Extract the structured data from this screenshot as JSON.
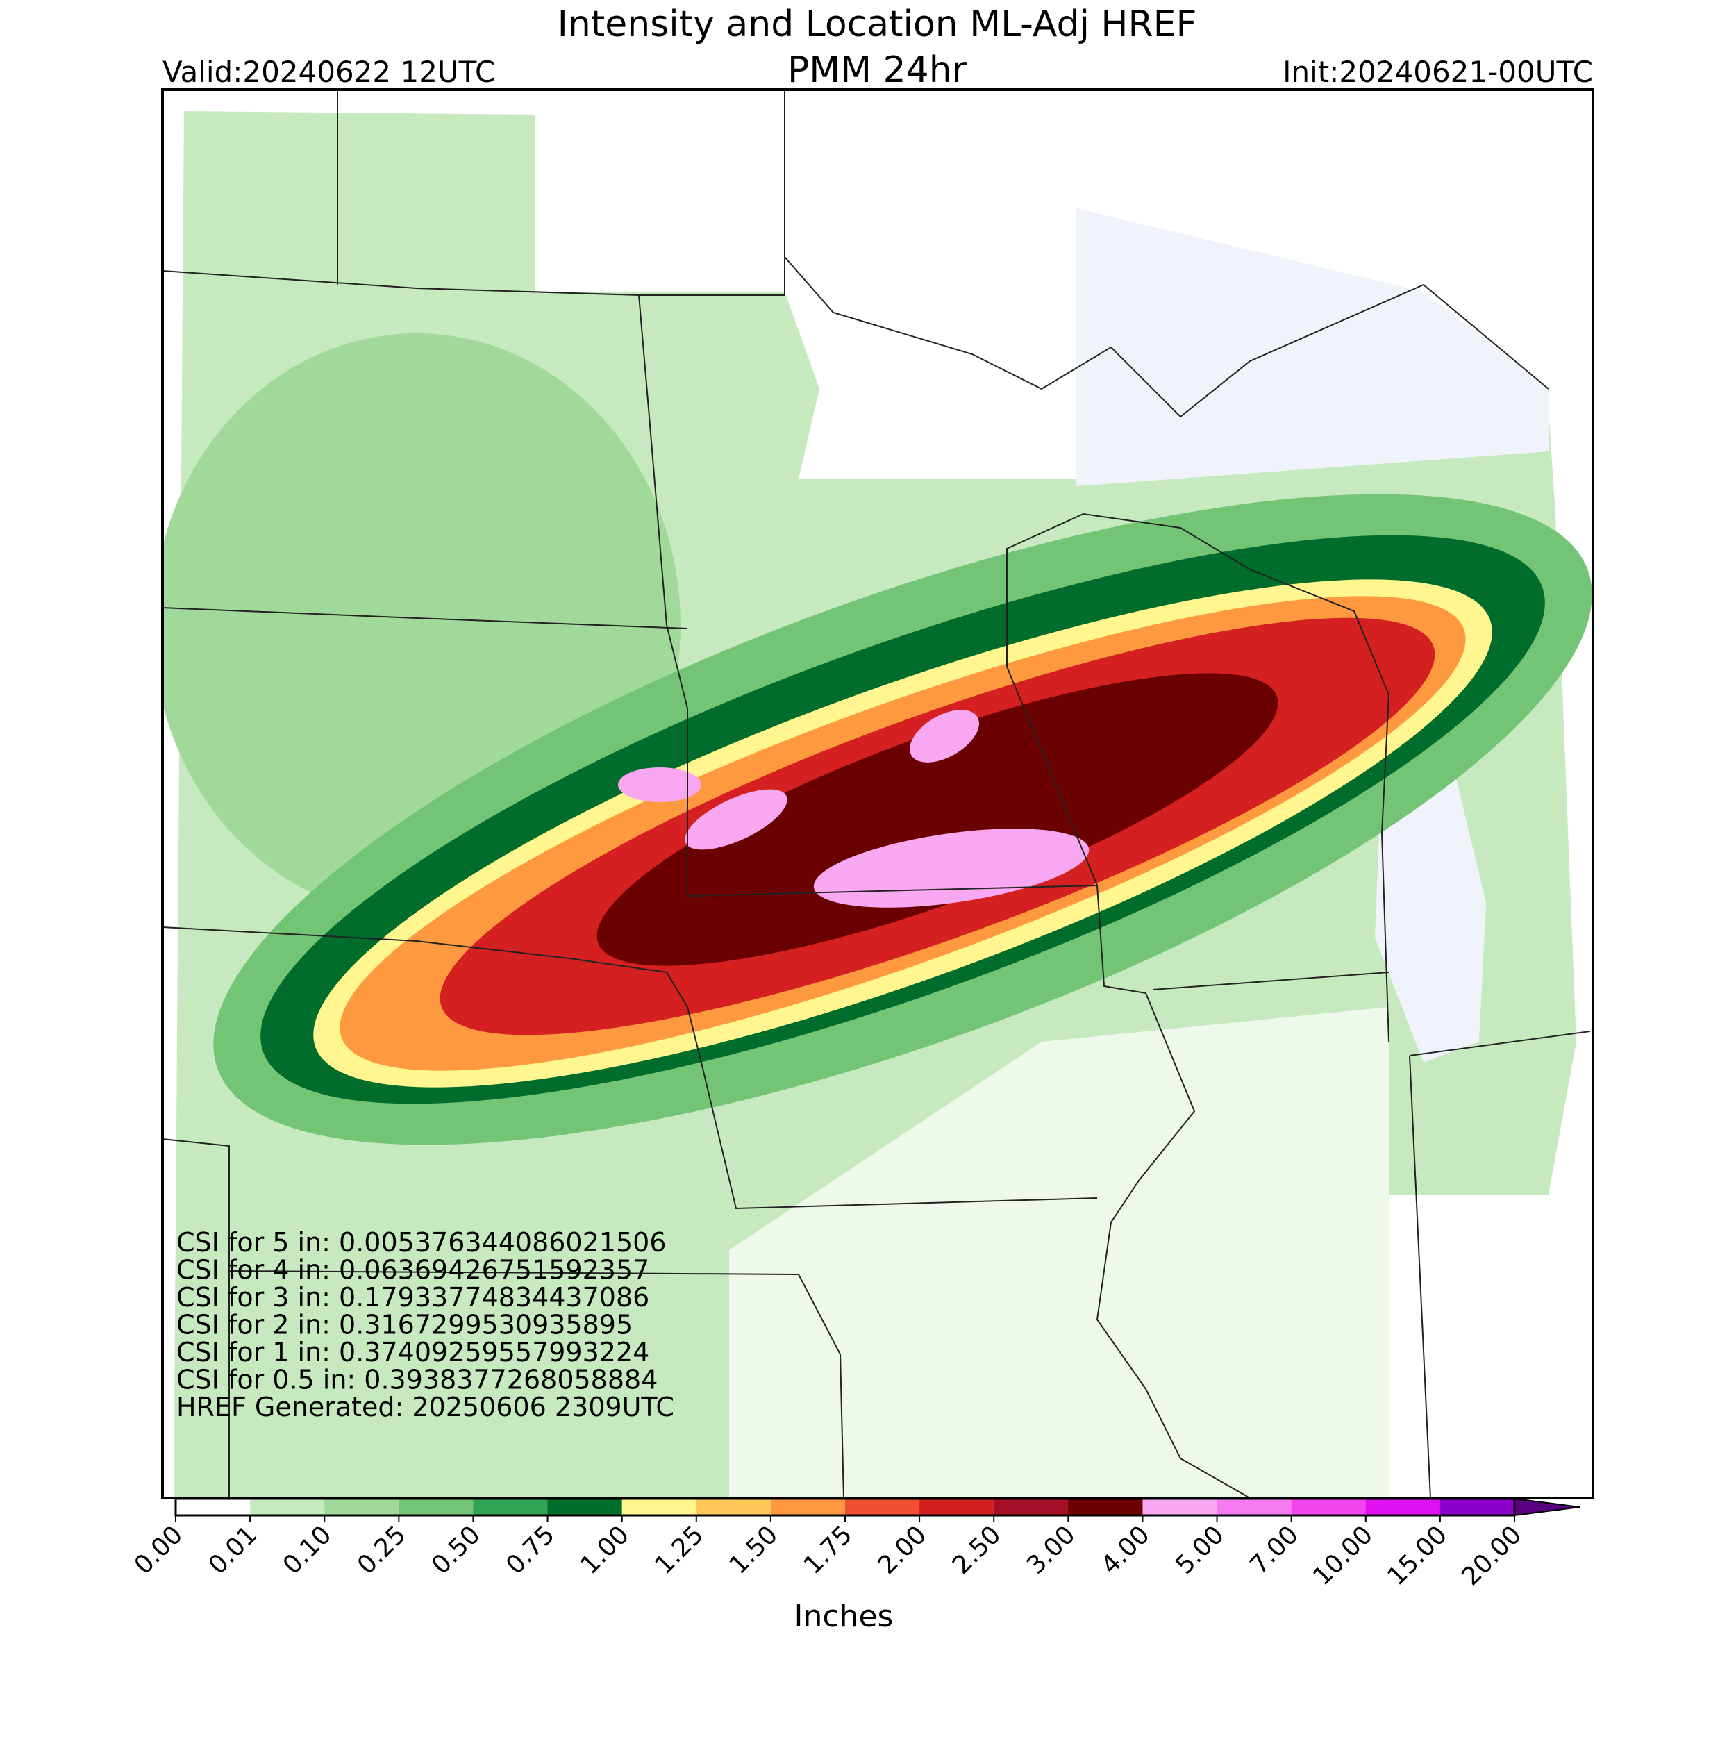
{
  "title": "Intensity and Location ML-Adj HREF",
  "subtitle": "PMM 24hr",
  "valid": "Valid:20240622 12UTC",
  "init": "Init:20240621-00UTC",
  "stats": [
    "CSI for 5 in: 0.005376344086021506",
    "CSI for 4 in: 0.06369426751592357",
    "CSI for 3 in: 0.17933774834437086",
    "CSI for 2 in: 0.3167299530935895",
    "CSI for 1 in: 0.37409259557993224",
    "CSI for 0.5 in: 0.3938377268058884",
    "HREF Generated: 20250606 2309UTC"
  ],
  "colorbar": {
    "label": "Inches",
    "ticks": [
      "0.00",
      "0.01",
      "0.10",
      "0.25",
      "0.50",
      "0.75",
      "1.00",
      "1.25",
      "1.50",
      "1.75",
      "2.00",
      "2.50",
      "3.00",
      "4.00",
      "5.00",
      "7.00",
      "10.00",
      "15.00",
      "20.00"
    ],
    "colors": [
      "#ffffff",
      "#c7e9c0",
      "#a1d99b",
      "#74c476",
      "#31a354",
      "#006d2c",
      "#fff68f",
      "#ffc857",
      "#ff9940",
      "#f05030",
      "#d42020",
      "#a50f28",
      "#6a0000",
      "#f7a8f0",
      "#f57cf0",
      "#f245f0",
      "#e010f0",
      "#8a00c8"
    ],
    "over_color": "#5a0080"
  }
}
